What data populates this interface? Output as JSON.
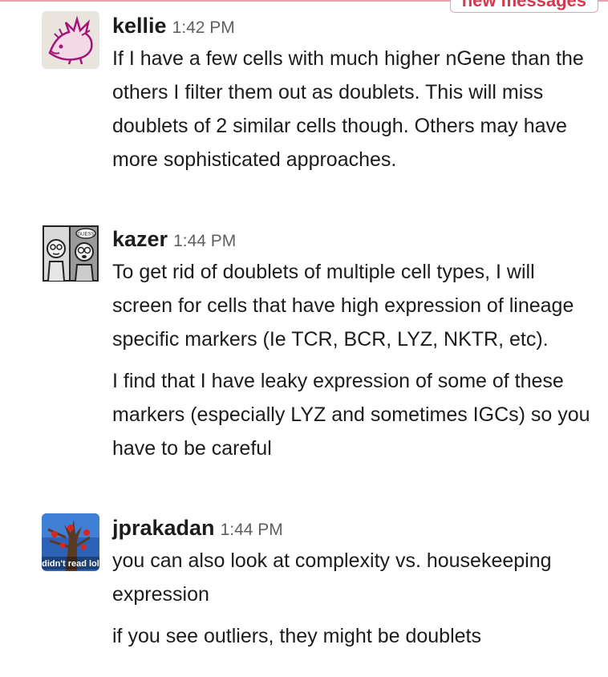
{
  "new_messages_label": "new messages",
  "messages": [
    {
      "author": "kellie",
      "time": "1:42 PM",
      "avatar": "hedgehog-drawing-avatar",
      "texts": [
        "If I have a few cells with much higher nGene than the others I filter them out as doublets. This will miss doublets of 2 similar cells though. Others may have more sophisticated approaches."
      ]
    },
    {
      "author": "kazer",
      "time": "1:44 PM",
      "avatar": "comic-faces-avatar",
      "avatar_text": "GUESS",
      "texts": [
        "To get rid of doublets of multiple cell types, I will screen for cells that have high expression of lineage specific markers (Ie TCR, BCR, LYZ, NKTR, etc).",
        "I find that I have leaky expression of some of these markers (especially LYZ and sometimes IGCs) so you have to be careful"
      ]
    },
    {
      "author": "jprakadan",
      "time": "1:44 PM",
      "avatar": "spiderman-tree-avatar",
      "avatar_text": "didn't read lol",
      "texts": [
        "you can also look at complexity vs. housekeeping expression",
        "if you see outliers, they might be doublets"
      ]
    }
  ],
  "colors": {
    "accent_red": "#d6384f",
    "new_line": "#e8a2ad",
    "text": "#1d1c1d",
    "muted": "#616061"
  }
}
